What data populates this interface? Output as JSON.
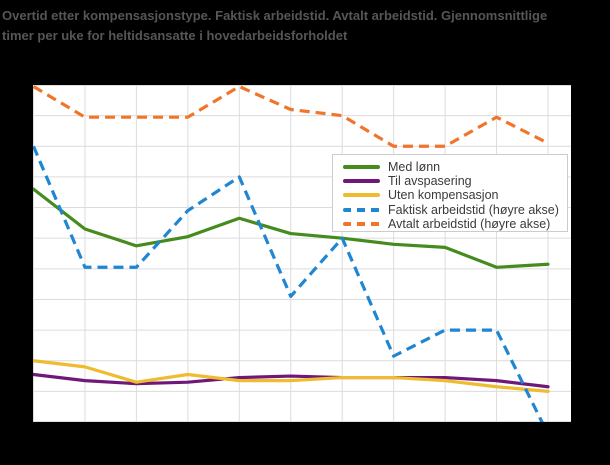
{
  "title": {
    "line1": "Overtid etter kompensasjonstype. Faktisk arbeidstid. Avtalt arbeidstid. Gjennomsnittlige",
    "line2": "timer per uke for heltidsansatte i hovedarbeidsforholdet"
  },
  "colors": {
    "title_text": "#565656",
    "plot_background": "#ffffff",
    "outer_background": "#000000",
    "gridline": "#dcdcdc",
    "legend_border": "#cccccc",
    "legend_text": "#3a3a3a",
    "med_lonn_green": "#458b1e",
    "til_avspasering_purple": "#6f1878",
    "uten_kompensasjon_yellow": "#efbc2f",
    "faktisk_arbeidstid_blue": "#1f86d2",
    "avtalt_arbeidstid_orange": "#f0752b"
  },
  "legend": {
    "items": [
      {
        "label": "Med lønn",
        "color": "#458b1e",
        "style": "solid"
      },
      {
        "label": "Til avspasering",
        "color": "#6f1878",
        "style": "solid"
      },
      {
        "label": "Uten kompensasjon",
        "color": "#efbc2f",
        "style": "solid"
      },
      {
        "label": "Faktisk arbeidstid (høyre akse)",
        "color": "#1f86d2",
        "style": "dashed"
      },
      {
        "label": "Avtalt arbeidstid (høyre akse)",
        "color": "#f0752b",
        "style": "dashed"
      }
    ]
  },
  "chart_data": {
    "type": "line",
    "title": "Overtid etter kompensasjonstype. Faktisk arbeidstid. Avtalt arbeidstid. Gjennomsnittlige timer per uke for heltidsansatte i hovedarbeidsforholdet",
    "x": [
      1,
      2,
      3,
      4,
      5,
      6,
      7,
      8,
      9,
      10,
      11
    ],
    "x_tick_labels_visible": false,
    "y_tick_labels_visible": false,
    "grid": "on",
    "x_gridlines": 11,
    "grid_color": "#dcdcdc",
    "left_axis": {
      "unit": "gridline-steps from bottom",
      "min": 0,
      "max": 11
    },
    "right_axis": {
      "unit": "gridline-steps from bottom",
      "min": 0,
      "max": 11
    },
    "legend_position": "upper-right-inside",
    "series": [
      {
        "name": "Med lønn",
        "axis": "left",
        "style": "solid",
        "color": "#458b1e",
        "values": [
          7.6,
          6.3,
          5.75,
          6.05,
          6.65,
          6.15,
          6.0,
          5.8,
          5.7,
          5.05,
          5.15
        ]
      },
      {
        "name": "Til avspasering",
        "axis": "left",
        "style": "solid",
        "color": "#6f1878",
        "values": [
          1.55,
          1.35,
          1.25,
          1.3,
          1.45,
          1.5,
          1.45,
          1.45,
          1.45,
          1.35,
          1.15
        ]
      },
      {
        "name": "Uten kompensasjon",
        "axis": "left",
        "style": "solid",
        "color": "#efbc2f",
        "values": [
          2.0,
          1.8,
          1.3,
          1.55,
          1.35,
          1.35,
          1.45,
          1.45,
          1.35,
          1.15,
          1.0
        ]
      },
      {
        "name": "Faktisk arbeidstid (høyre akse)",
        "axis": "right",
        "style": "dashed",
        "color": "#1f86d2",
        "values": [
          9.0,
          5.05,
          5.05,
          6.9,
          8.0,
          4.1,
          6.0,
          2.15,
          3.0,
          3.0,
          -0.4
        ]
      },
      {
        "name": "Avtalt arbeidstid (høyre akse)",
        "axis": "right",
        "style": "dashed",
        "color": "#f0752b",
        "values": [
          10.95,
          9.95,
          9.95,
          9.95,
          10.95,
          10.2,
          10.0,
          9.0,
          9.0,
          9.95,
          9.1
        ]
      }
    ]
  }
}
